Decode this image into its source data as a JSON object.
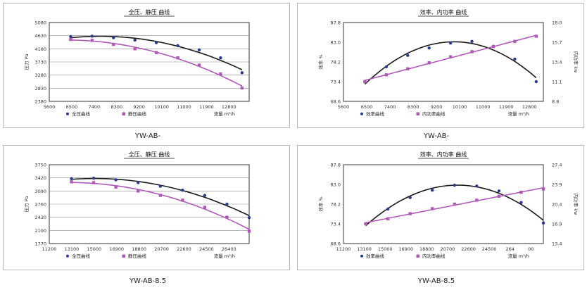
{
  "captions": [
    "YW-AB-",
    "YW-AB-",
    "YW-AB-8.5",
    "YW-AB-8.5"
  ],
  "chart_data": [
    {
      "type": "line",
      "title": "全压、静压 曲线",
      "xlabel": "流量 m³/h",
      "ylabel": "压力 Pa",
      "x_ticks": [
        "5600",
        "6500",
        "7400",
        "8300",
        "9200",
        "10100",
        "11000",
        "11900",
        "12800"
      ],
      "xlim": [
        5600,
        14000
      ],
      "y_ticks": [
        "2380",
        "2830",
        "3280",
        "3730",
        "4180",
        "4630",
        "5080"
      ],
      "ylim": [
        2380,
        5080
      ],
      "series": [
        {
          "name": "全压曲线",
          "color": "#1a1a1a",
          "marker": "dot",
          "x": [
            6500,
            7400,
            8300,
            9200,
            10100,
            11000,
            11900,
            12800,
            13700
          ],
          "y": [
            4600,
            4610,
            4560,
            4480,
            4390,
            4290,
            4140,
            3870,
            3360
          ]
        },
        {
          "name": "静压曲线",
          "color": "#b05ab8",
          "marker": "square",
          "x": [
            6500,
            7400,
            8300,
            9200,
            10100,
            11000,
            11900,
            12800,
            13700
          ],
          "y": [
            4500,
            4470,
            4330,
            4180,
            4050,
            3870,
            3620,
            3320,
            2840
          ]
        }
      ],
      "grid": true,
      "legend_position": "bottom"
    },
    {
      "type": "line",
      "title": "效率、内功率 曲线",
      "xlabel": "流量 m³/h",
      "ylabel": "效率 %",
      "y2label": "内功率 kw",
      "x_ticks": [
        "5600",
        "6500",
        "7400",
        "8300",
        "9200",
        "10100",
        "11000",
        "11900",
        "12800"
      ],
      "xlim": [
        5600,
        14000
      ],
      "y_ticks": [
        "68.6",
        "73.4",
        "78.2",
        "83.0",
        "87.8"
      ],
      "ylim": [
        68.6,
        87.8
      ],
      "y2_ticks": [
        "8.8",
        "11.1",
        "13.4",
        "15.7",
        "18.0"
      ],
      "y2lim": [
        8.8,
        18.0
      ],
      "series": [
        {
          "name": "效率曲线",
          "axis": "left",
          "color": "#1a1a1a",
          "marker": "dot",
          "x": [
            6500,
            7400,
            8300,
            9200,
            10100,
            11000,
            11900,
            12800,
            13700
          ],
          "y": [
            73.4,
            77.0,
            79.8,
            81.6,
            82.8,
            83.2,
            82.0,
            78.9,
            73.4
          ]
        },
        {
          "name": "内功率曲线",
          "axis": "right",
          "color": "#b05ab8",
          "marker": "square",
          "x": [
            6500,
            7400,
            8300,
            9200,
            10100,
            11000,
            11900,
            12800,
            13700
          ],
          "y": [
            11.1,
            11.9,
            12.6,
            13.3,
            14.0,
            14.6,
            15.2,
            15.8,
            16.4
          ]
        }
      ],
      "grid": false,
      "legend_position": "bottom"
    },
    {
      "type": "line",
      "title": "全压、静压 曲线",
      "xlabel": "流量 m³/h",
      "ylabel": "压力 Pa",
      "x_ticks": [
        "11200",
        "13100",
        "15000",
        "16900",
        "18800",
        "20700",
        "22600",
        "24500",
        "26400"
      ],
      "xlim": [
        11200,
        28300
      ],
      "y_ticks": [
        "1770",
        "2100",
        "2430",
        "2760",
        "3090",
        "3420",
        "3750"
      ],
      "ylim": [
        1770,
        3750
      ],
      "series": [
        {
          "name": "全压曲线",
          "color": "#1a1a1a",
          "marker": "dot",
          "x": [
            13100,
            15000,
            16900,
            18800,
            20700,
            22600,
            24500,
            26400,
            28300
          ],
          "y": [
            3400,
            3410,
            3370,
            3300,
            3210,
            3110,
            2980,
            2760,
            2420
          ]
        },
        {
          "name": "静压曲线",
          "color": "#b05ab8",
          "marker": "square",
          "x": [
            13100,
            15000,
            16900,
            18800,
            20700,
            22600,
            24500,
            26400,
            28300
          ],
          "y": [
            3320,
            3300,
            3190,
            3090,
            2980,
            2860,
            2680,
            2430,
            2080
          ]
        }
      ],
      "grid": true,
      "legend_position": "bottom"
    },
    {
      "type": "line",
      "title": "效率、内功率 曲线",
      "xlabel": "流量 m³/h",
      "ylabel": "效率 %",
      "y2label": "内功率 kw",
      "x_ticks": [
        "11200",
        "13100",
        "15000",
        "16900",
        "18800",
        "20700",
        "22600",
        "24500",
        "264",
        "00"
      ],
      "xlim": [
        11200,
        28300
      ],
      "y_ticks": [
        "68.6",
        "73.4",
        "78.2",
        "83.0",
        "87.8"
      ],
      "ylim": [
        68.6,
        87.8
      ],
      "y2_ticks": [
        "13.4",
        "16.9",
        "20.4",
        "23.9",
        "27.4"
      ],
      "y2lim": [
        13.4,
        27.4
      ],
      "series": [
        {
          "name": "效率曲线",
          "axis": "left",
          "color": "#1a1a1a",
          "marker": "dot",
          "x": [
            13100,
            15000,
            16900,
            18800,
            20700,
            22600,
            24500,
            26400,
            28300
          ],
          "y": [
            73.4,
            77.0,
            79.8,
            81.6,
            82.8,
            82.6,
            81.4,
            78.6,
            73.6
          ]
        },
        {
          "name": "内功率曲线",
          "axis": "right",
          "color": "#b05ab8",
          "marker": "square",
          "x": [
            13100,
            15000,
            16900,
            18800,
            20700,
            22600,
            24500,
            26400,
            28300
          ],
          "y": [
            16.9,
            17.8,
            18.7,
            19.6,
            20.4,
            21.1,
            21.8,
            22.5,
            23.1
          ]
        }
      ],
      "grid": false,
      "legend_position": "bottom"
    }
  ]
}
